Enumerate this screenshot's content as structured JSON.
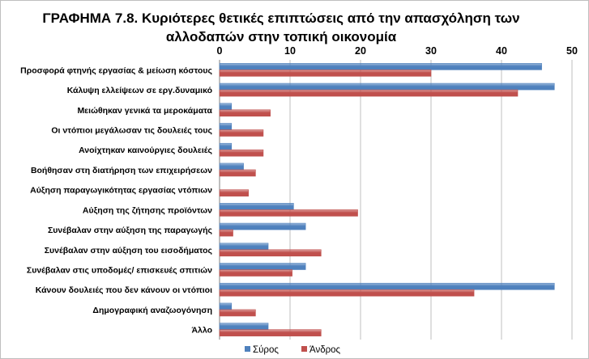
{
  "chart_data": {
    "type": "bar",
    "orientation": "horizontal",
    "title_line1": "ΓΡΑΦΗΜΑ 7.8. Κυριότερες θετικές επιπτώσεις από την απασχόληση των",
    "title_line2": "αλλοδαπών στην τοπική οικονομία",
    "xlim": [
      0,
      50
    ],
    "xticks": [
      "0",
      "10",
      "20",
      "30",
      "40",
      "50"
    ],
    "grid": true,
    "legend_position": "bottom",
    "categories": [
      "Προσφορά φτηνής εργασίας & μείωση κόστους",
      "Κάλυψη ελλείψεων σε εργ.δυναμικό",
      "Μειώθηκαν γενικά τα μεροκάματα",
      "Οι ντόπιοι μεγάλωσαν τις δουλειές τους",
      "Ανοίχτηκαν καινούργιες δουλειές",
      "Βοήθησαν στη διατήρηση των επιχειρήσεων",
      "Αύξηση παραγωγικότητας εργασίας ντόπιων",
      "Αύξηση της ζήτησης προϊόντων",
      "Συνέβαλαν στην αύξηση της παραγωγής",
      "Συνέβαλαν στην αύξηση του εισοδήματος",
      "Συνέβαλαν στις υποδομές/ επισκευές σπιτιών",
      "Κάνουν δουλειές που δεν κάνουν οι ντόπιοι",
      "Δημογραφική αναζωογόνηση",
      "Άλλο"
    ],
    "series": [
      {
        "name": "Σύρος",
        "color": "#4f81bd",
        "values": [
          45.7,
          47.5,
          1.7,
          1.7,
          1.7,
          3.4,
          0,
          10.5,
          12.2,
          6.9,
          12.2,
          47.5,
          1.7,
          6.9
        ]
      },
      {
        "name": "Άνδρος",
        "color": "#c0504d",
        "values": [
          30.0,
          42.3,
          7.2,
          6.2,
          6.2,
          5.1,
          4.1,
          19.6,
          1.9,
          14.4,
          10.3,
          36.1,
          5.1,
          14.4
        ]
      }
    ]
  }
}
